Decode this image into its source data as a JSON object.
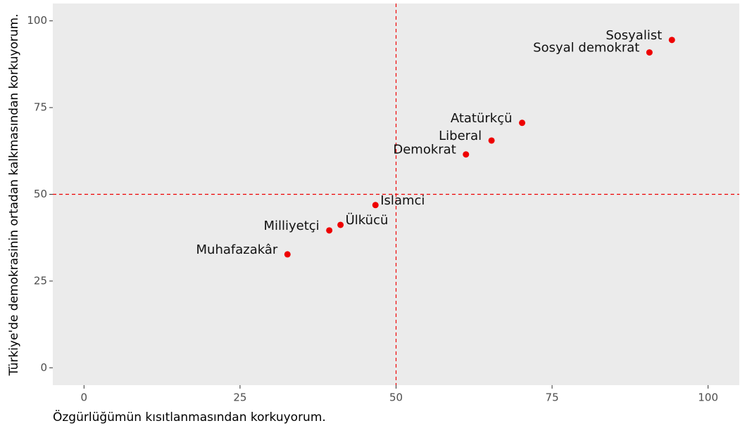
{
  "chart_data": {
    "type": "scatter",
    "x_label": "Özgürlüğümün kısıtlanmasından korkuyorum.",
    "y_label": "Türkiye'de demokrasinin ortadan kalkmasından korkuyorum.",
    "labels": [
      "Sosyalist",
      "Sosyal demokrat",
      "Atatürkçü",
      "Liberal",
      "Demokrat",
      "Islamci",
      "Ülkücü",
      "Milliyetçi",
      "Muhafazakâr"
    ],
    "x": [
      94.2,
      90.6,
      70.2,
      65.3,
      61.2,
      46.7,
      41.1,
      39.3,
      32.6
    ],
    "values": [
      94.5,
      90.9,
      70.6,
      65.5,
      61.5,
      46.9,
      41.2,
      39.6,
      32.7
    ],
    "color": "#ee0000",
    "xlim": [
      -5,
      105
    ],
    "xticks": [
      0,
      25,
      50,
      75,
      100
    ],
    "ylim": [
      -5,
      105
    ],
    "yticks": [
      0,
      25,
      50,
      75,
      100
    ],
    "reference_lines": {
      "x": 50,
      "y": 50
    },
    "reference_color": "#ee0000"
  }
}
